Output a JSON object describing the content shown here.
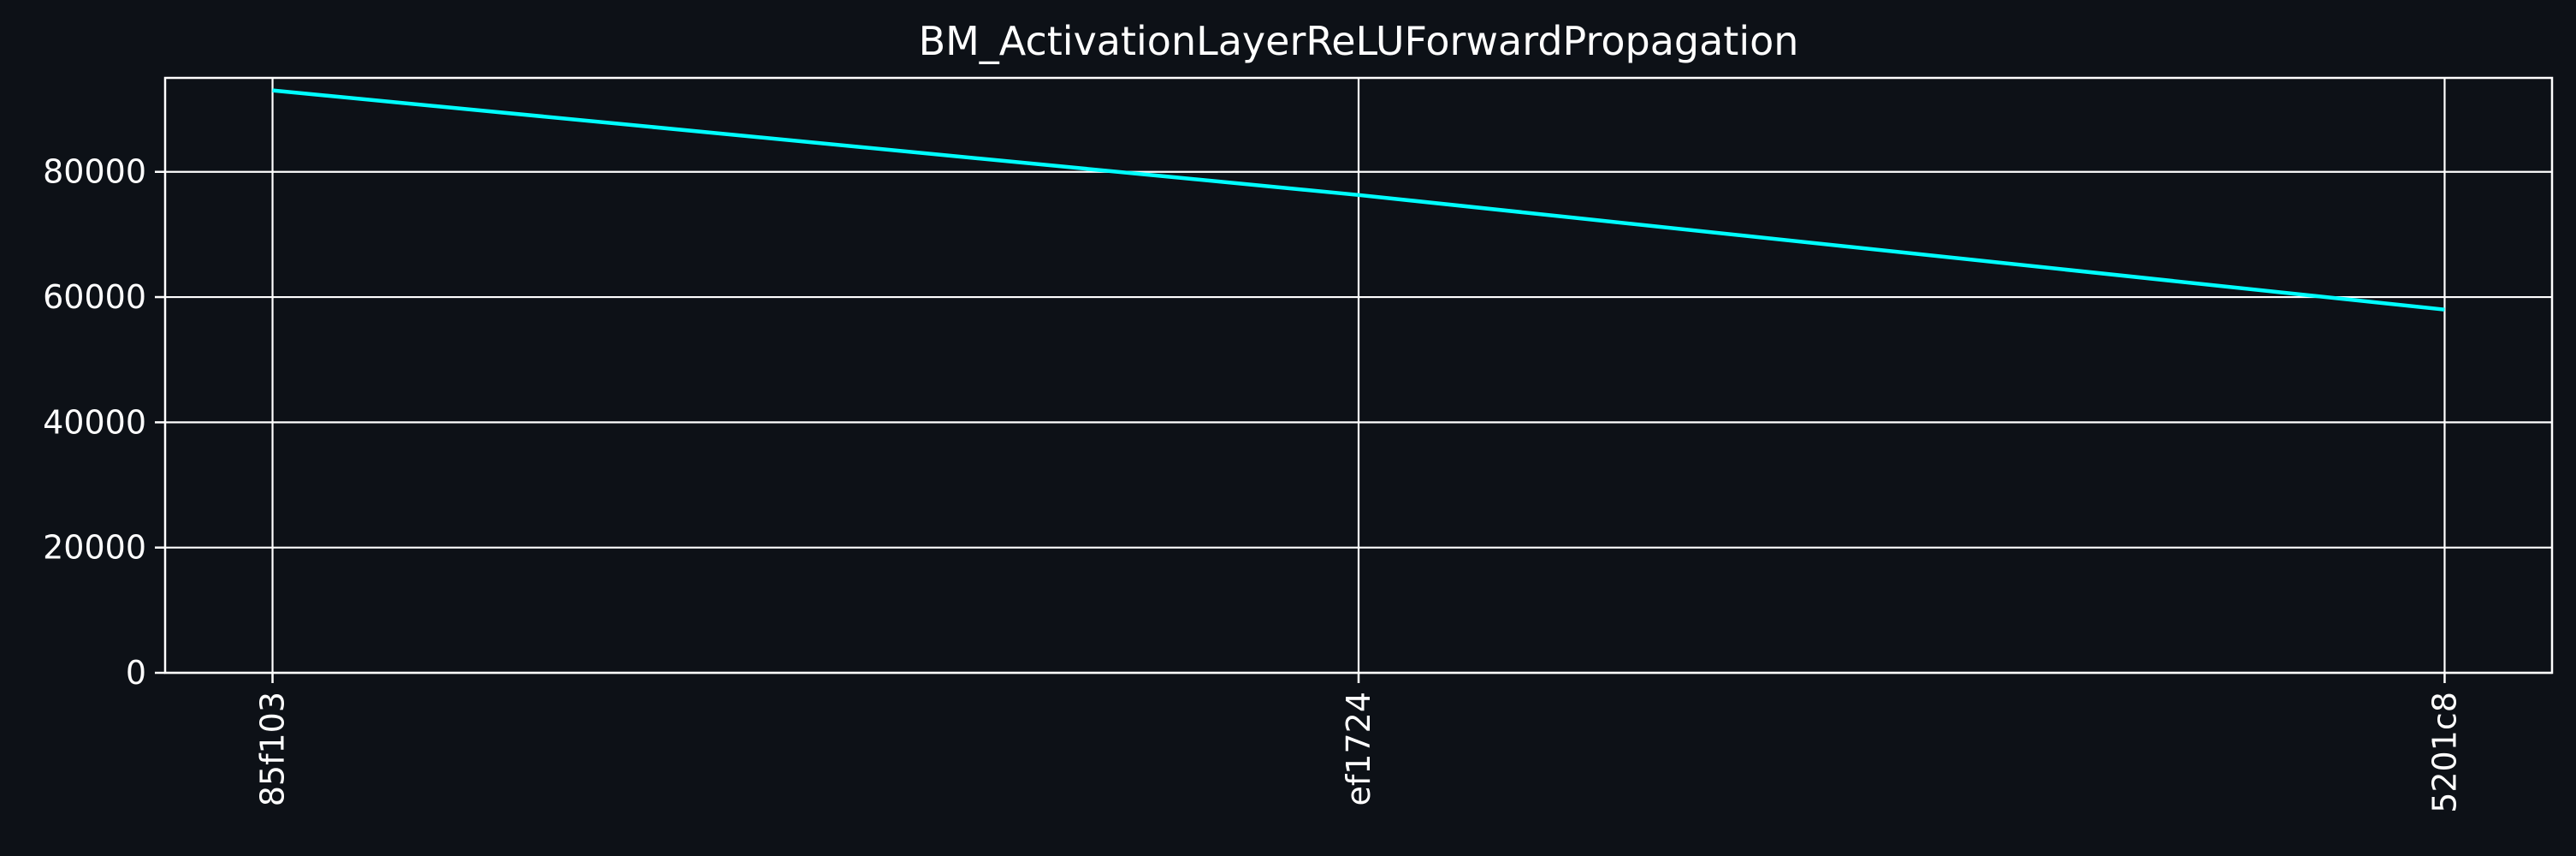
{
  "chart_data": {
    "type": "line",
    "title": "BM_ActivationLayerReLUForwardPropagation",
    "xlabel": "",
    "ylabel": "",
    "categories": [
      "85f103",
      "ef1724",
      "5201c8"
    ],
    "series": [
      {
        "values": [
          93000,
          76300,
          58000
        ]
      }
    ],
    "ylim": [
      0,
      95000
    ],
    "yticks": [
      0,
      20000,
      40000,
      60000,
      80000
    ],
    "ytick_labels": [
      "0",
      "20000",
      "40000",
      "60000",
      "80000"
    ],
    "grid": true,
    "colors": {
      "background": "#0d1117",
      "plot_background": "#0d1117",
      "axes": "#ffffff",
      "grid": "#ffffff",
      "text": "#ffffff",
      "series": [
        "#00ffff"
      ]
    }
  }
}
